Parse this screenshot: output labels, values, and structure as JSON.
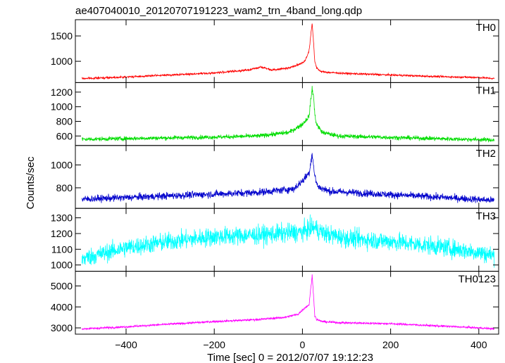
{
  "chart_data": {
    "type": "line",
    "title": "ae407040010_20120707191223_wam2_trn_4band_long.qdp",
    "xlabel": "Time [sec] 0 = 2012/07/07 19:12:23",
    "ylabel": "Counts/sec",
    "xlim": [
      -515,
      445
    ],
    "xticks": [
      -400,
      -200,
      0,
      200,
      400
    ],
    "x_ticklabels": [
      "−400",
      "−200",
      "0",
      "200",
      "400"
    ],
    "grid": false,
    "panels": [
      {
        "name": "TH0",
        "color": "#ff0000",
        "ylim": [
          580,
          1820
        ],
        "yticks": [
          1000,
          1500
        ],
        "ytick_labels": [
          "1000",
          "1500"
        ],
        "noise": 18,
        "x": [
          -500,
          -400,
          -300,
          -200,
          -120,
          -95,
          -70,
          -30,
          -10,
          5,
          15,
          22,
          25,
          28,
          32,
          40,
          60,
          100,
          200,
          300,
          400,
          435
        ],
        "y": [
          660,
          690,
          730,
          770,
          830,
          890,
          830,
          870,
          930,
          1000,
          1200,
          1750,
          1400,
          1000,
          880,
          800,
          780,
          760,
          730,
          700,
          680,
          660
        ]
      },
      {
        "name": "TH1",
        "color": "#00dd00",
        "ylim": [
          470,
          1330
        ],
        "yticks": [
          600,
          800,
          1000,
          1200
        ],
        "ytick_labels": [
          "600",
          "800",
          "1000",
          "1200"
        ],
        "noise": 28,
        "x": [
          -500,
          -300,
          -200,
          -100,
          -30,
          0,
          15,
          22,
          25,
          28,
          32,
          45,
          80,
          200,
          300,
          435
        ],
        "y": [
          555,
          575,
          585,
          600,
          650,
          760,
          870,
          1250,
          1150,
          900,
          760,
          650,
          600,
          580,
          565,
          545
        ]
      },
      {
        "name": "TH2",
        "color": "#0000cc",
        "ylim": [
          620,
          1170
        ],
        "yticks": [
          800,
          1000
        ],
        "ytick_labels": [
          "800",
          "1000"
        ],
        "noise": 30,
        "x": [
          -500,
          -300,
          -200,
          -100,
          -20,
          0,
          15,
          22,
          25,
          28,
          35,
          60,
          200,
          300,
          435
        ],
        "y": [
          700,
          730,
          745,
          760,
          790,
          860,
          930,
          1100,
          1000,
          900,
          810,
          770,
          740,
          720,
          690
        ]
      },
      {
        "name": "TH3",
        "color": "#00ffff",
        "ylim": [
          960,
          1360
        ],
        "yticks": [
          1000,
          1100,
          1200,
          1300
        ],
        "ytick_labels": [
          "1000",
          "1100",
          "1200",
          "1300"
        ],
        "noise": 55,
        "x": [
          -500,
          -400,
          -300,
          -200,
          -100,
          0,
          25,
          50,
          100,
          200,
          300,
          350,
          400,
          435
        ],
        "y": [
          1040,
          1110,
          1150,
          1180,
          1190,
          1210,
          1240,
          1200,
          1170,
          1150,
          1120,
          1100,
          1080,
          1060
        ]
      },
      {
        "name": "TH0123",
        "color": "#ff00ff",
        "ylim": [
          2700,
          5700
        ],
        "yticks": [
          3000,
          4000,
          5000
        ],
        "ytick_labels": [
          "3000",
          "4000",
          "5000"
        ],
        "noise": 45,
        "x": [
          -500,
          -400,
          -300,
          -200,
          -100,
          -40,
          -10,
          5,
          15,
          22,
          25,
          28,
          32,
          45,
          80,
          200,
          300,
          400,
          435
        ],
        "y": [
          2950,
          3050,
          3180,
          3300,
          3400,
          3500,
          3650,
          3950,
          4100,
          5500,
          4600,
          3600,
          3400,
          3300,
          3250,
          3200,
          3100,
          3000,
          2950
        ]
      }
    ]
  }
}
